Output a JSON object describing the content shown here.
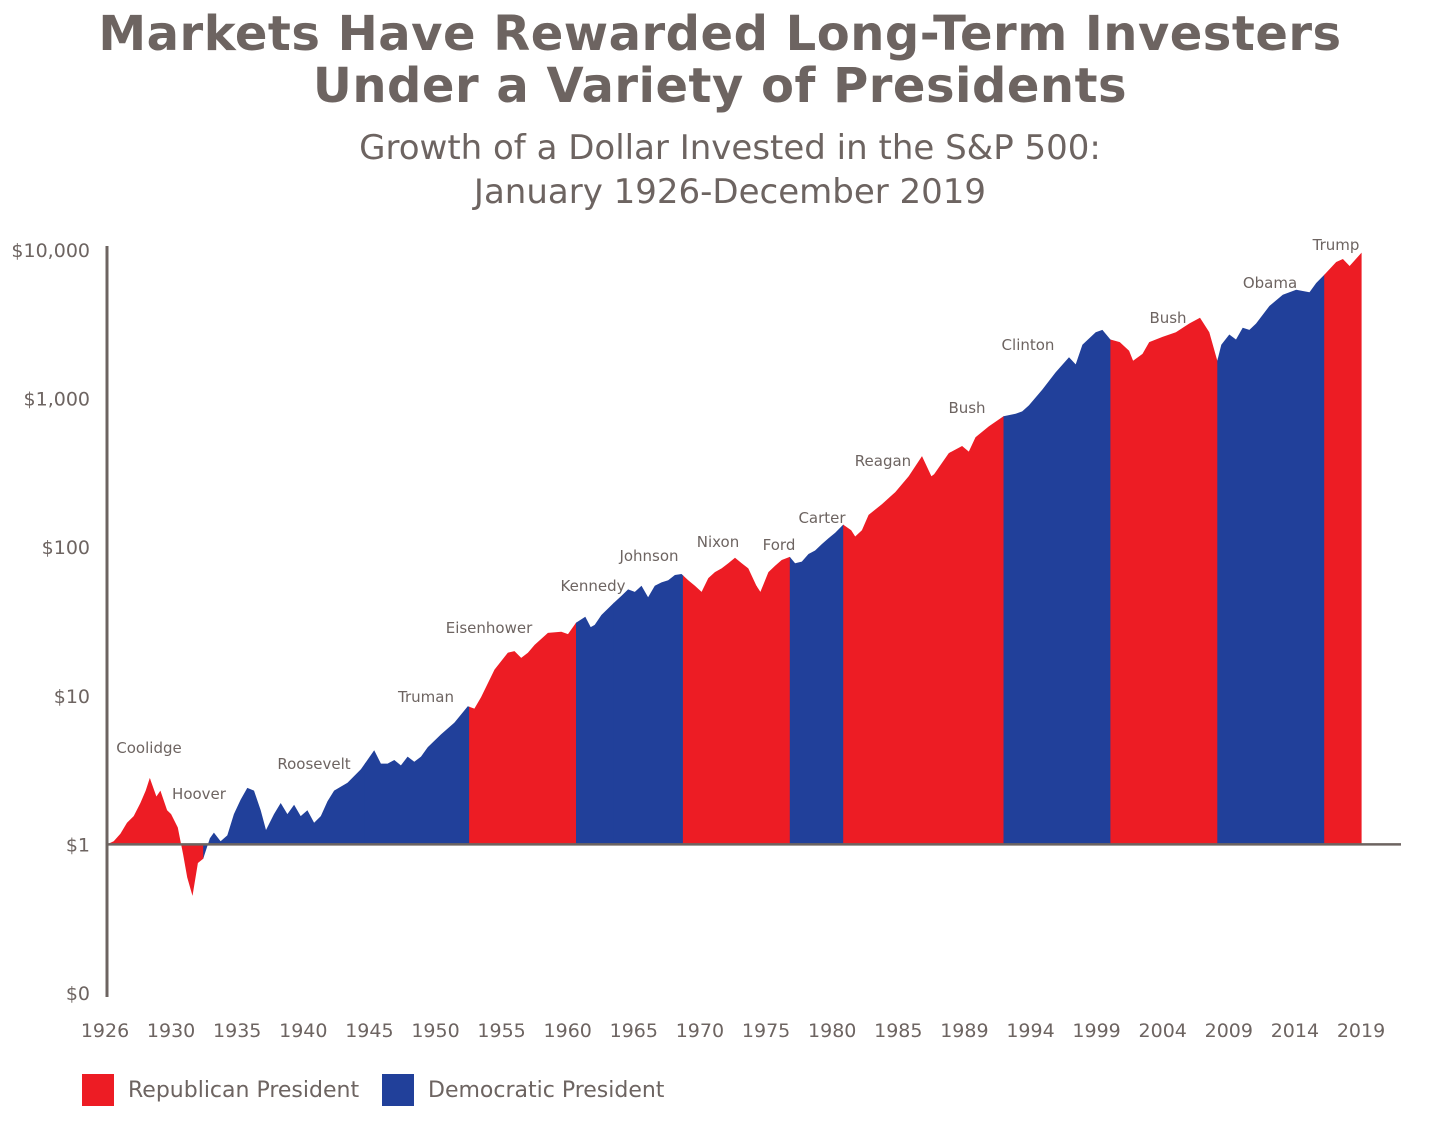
{
  "title": {
    "line1": "Markets Have Rewarded Long-Term Investers",
    "line2": "Under a Variety of Presidents"
  },
  "subtitle": {
    "line1": "Growth of a Dollar Invested in the S&P 500:",
    "line2": "January 1926-December 2019"
  },
  "colors": {
    "republican": "#ed1c24",
    "democratic": "#21409a",
    "axis": "#6d6461"
  },
  "legend": [
    {
      "key": "republican",
      "label": "Republican President"
    },
    {
      "key": "democratic",
      "label": "Democratic President"
    }
  ],
  "chart_data": {
    "type": "area",
    "title": "Growth of a Dollar Invested in the S&P 500: January 1926-December 2019",
    "y_scale": "log",
    "y_ticks": [
      {
        "value": 0.1,
        "label": "$0"
      },
      {
        "value": 1,
        "label": "$1"
      },
      {
        "value": 10,
        "label": "$10"
      },
      {
        "value": 100,
        "label": "$100"
      },
      {
        "value": 1000,
        "label": "$1,000"
      },
      {
        "value": 10000,
        "label": "$10,000"
      }
    ],
    "x_ticks": [
      "1926",
      "1930",
      "1935",
      "1940",
      "1945",
      "1950",
      "1955",
      "1960",
      "1965",
      "1970",
      "1975",
      "1980",
      "1985",
      "1989",
      "1994",
      "1999",
      "2004",
      "2009",
      "2014",
      "2019"
    ],
    "ylim": [
      0.1,
      10000
    ],
    "xlim": [
      1926,
      2021.5
    ],
    "grid": false,
    "legend_position": "bottom-left",
    "baseline": 1,
    "presidents": [
      {
        "name": "Coolidge",
        "party": "republican",
        "start": 1926.0,
        "end": 1929.2
      },
      {
        "name": "Hoover",
        "party": "republican",
        "start": 1929.2,
        "end": 1933.2
      },
      {
        "name": "Roosevelt",
        "party": "democratic",
        "start": 1933.2,
        "end": 1945.3
      },
      {
        "name": "Truman",
        "party": "democratic",
        "start": 1945.3,
        "end": 1953.1
      },
      {
        "name": "Eisenhower",
        "party": "republican",
        "start": 1953.1,
        "end": 1961.1
      },
      {
        "name": "Kennedy",
        "party": "democratic",
        "start": 1961.1,
        "end": 1963.9
      },
      {
        "name": "Johnson",
        "party": "democratic",
        "start": 1963.9,
        "end": 1969.1
      },
      {
        "name": "Nixon",
        "party": "republican",
        "start": 1969.1,
        "end": 1974.6
      },
      {
        "name": "Ford",
        "party": "republican",
        "start": 1974.6,
        "end": 1977.1
      },
      {
        "name": "Carter",
        "party": "democratic",
        "start": 1977.1,
        "end": 1981.1
      },
      {
        "name": "Reagan",
        "party": "republican",
        "start": 1981.1,
        "end": 1989.1
      },
      {
        "name": "Bush",
        "party": "republican",
        "start": 1989.1,
        "end": 1993.1
      },
      {
        "name": "Clinton",
        "party": "democratic",
        "start": 1993.1,
        "end": 2001.1
      },
      {
        "name": "Bush",
        "party": "republican",
        "start": 2001.1,
        "end": 2009.1
      },
      {
        "name": "Obama",
        "party": "democratic",
        "start": 2009.1,
        "end": 2017.1
      },
      {
        "name": "Trump",
        "party": "republican",
        "start": 2017.1,
        "end": 2019.9
      }
    ],
    "series": [
      {
        "x": [
          1926.0,
          1926.5,
          1927.0,
          1927.5,
          1928.0,
          1928.5,
          1928.9,
          1929.2,
          1929.7,
          1930.0,
          1930.5,
          1930.8,
          1931.3,
          1931.7,
          1932.0,
          1932.4,
          1932.8,
          1933.2,
          1933.7,
          1934.0,
          1934.5,
          1935.0,
          1935.5,
          1936.0,
          1936.5,
          1937.0,
          1937.5,
          1937.9,
          1938.5,
          1939.0,
          1939.5,
          1940.0,
          1940.5,
          1941.0,
          1941.5,
          1942.0,
          1942.5,
          1943.0,
          1944.0,
          1945.0,
          1946.0,
          1946.5,
          1947.0,
          1947.5,
          1948.0,
          1948.5,
          1949.0,
          1949.5,
          1950.0,
          1951.0,
          1952.0,
          1953.0,
          1953.5,
          1954.0,
          1955.0,
          1956.0,
          1956.5,
          1957.0,
          1957.5,
          1958.0,
          1959.0,
          1960.0,
          1960.5,
          1961.1,
          1961.8,
          1962.2,
          1962.5,
          1963.0,
          1963.9,
          1964.5,
          1965.0,
          1965.5,
          1966.0,
          1966.5,
          1967.0,
          1967.5,
          1968.0,
          1968.5,
          1969.0,
          1969.5,
          1970.0,
          1970.5,
          1971.0,
          1971.5,
          1972.0,
          1972.5,
          1973.0,
          1973.5,
          1974.0,
          1974.6,
          1974.9,
          1975.5,
          1976.0,
          1976.5,
          1977.1,
          1977.5,
          1978.0,
          1978.5,
          1979.0,
          1979.5,
          1980.0,
          1980.5,
          1981.1,
          1981.7,
          1982.0,
          1982.5,
          1983.0,
          1984.0,
          1985.0,
          1986.0,
          1987.0,
          1987.7,
          1987.9,
          1988.5,
          1989.0,
          1990.0,
          1990.5,
          1991.0,
          1992.0,
          1993.1,
          1994.0,
          1994.5,
          1995.0,
          1996.0,
          1997.0,
          1998.0,
          1998.5,
          1999.0,
          2000.0,
          2000.5,
          2001.1,
          2001.8,
          2002.5,
          2002.8,
          2003.5,
          2004.0,
          2005.0,
          2006.0,
          2007.0,
          2007.8,
          2008.5,
          2009.1,
          2009.4,
          2010.0,
          2010.5,
          2011.0,
          2011.5,
          2012.0,
          2013.0,
          2014.0,
          2015.0,
          2015.5,
          2016.0,
          2016.5,
          2017.1,
          2018.0,
          2018.5,
          2019.0,
          2019.9
        ],
        "y": [
          1.0,
          1.05,
          1.18,
          1.4,
          1.55,
          1.9,
          2.3,
          2.8,
          2.1,
          2.3,
          1.7,
          1.6,
          1.3,
          0.85,
          0.6,
          0.45,
          0.75,
          0.8,
          1.1,
          1.2,
          1.05,
          1.15,
          1.6,
          2.0,
          2.4,
          2.3,
          1.7,
          1.25,
          1.6,
          1.9,
          1.6,
          1.85,
          1.55,
          1.7,
          1.4,
          1.55,
          1.95,
          2.3,
          2.6,
          3.2,
          4.3,
          3.5,
          3.5,
          3.7,
          3.4,
          3.9,
          3.6,
          3.9,
          4.5,
          5.5,
          6.6,
          8.5,
          8.2,
          9.8,
          15.0,
          19.5,
          20.0,
          18.0,
          19.5,
          22.0,
          26.5,
          27.0,
          26.0,
          31.0,
          34.0,
          29.0,
          30.0,
          35.0,
          42.0,
          47.0,
          52.0,
          50.0,
          55.0,
          46.0,
          55.0,
          58.0,
          60.0,
          65.0,
          66.0,
          60.0,
          55.0,
          50.0,
          62.0,
          68.0,
          72.0,
          78.0,
          85.0,
          78.0,
          72.0,
          55.0,
          50.0,
          68.0,
          75.0,
          82.0,
          86.0,
          78.0,
          80.0,
          90.0,
          95.0,
          105.0,
          115.0,
          125.0,
          142.0,
          130.0,
          118.0,
          130.0,
          165.0,
          195.0,
          235.0,
          300.0,
          410.0,
          300.0,
          310.0,
          370.0,
          430.0,
          480.0,
          440.0,
          550.0,
          650.0,
          760.0,
          790.0,
          820.0,
          900.0,
          1150.0,
          1500.0,
          1900.0,
          1700.0,
          2300.0,
          2800.0,
          2900.0,
          2500.0,
          2400.0,
          2100.0,
          1800.0,
          2000.0,
          2400.0,
          2600.0,
          2800.0,
          3200.0,
          3500.0,
          2800.0,
          1800.0,
          2300.0,
          2700.0,
          2500.0,
          3000.0,
          2900.0,
          3200.0,
          4200.0,
          5000.0,
          5400.0,
          5300.0,
          5200.0,
          6000.0,
          6800.0,
          8300.0,
          8700.0,
          7800.0,
          9600.0
        ]
      }
    ],
    "labels": [
      {
        "text": "Coolidge"
      },
      {
        "text": "Hoover"
      },
      {
        "text": "Roosevelt"
      },
      {
        "text": "Truman"
      },
      {
        "text": "Eisenhower"
      },
      {
        "text": "Kennedy"
      },
      {
        "text": "Johnson"
      },
      {
        "text": "Nixon"
      },
      {
        "text": "Ford"
      },
      {
        "text": "Carter"
      },
      {
        "text": "Reagan"
      },
      {
        "text": "Bush"
      },
      {
        "text": "Clinton"
      },
      {
        "text": "Bush"
      },
      {
        "text": "Obama"
      },
      {
        "text": "Trump"
      }
    ]
  }
}
